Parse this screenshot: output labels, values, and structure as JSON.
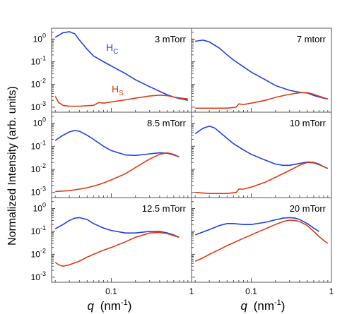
{
  "figure": {
    "ylabel": "Normalized Intensity (arb. units)",
    "xlabel_q": "q",
    "xlabel_unit": "(nm",
    "xlabel_exp": "-1",
    "xlabel_close": ")"
  },
  "colors": {
    "Hc": "#1f3fe8",
    "Hs": "#e03a12"
  },
  "chart_data": [
    {
      "type": "line",
      "panel": "3 mTorr",
      "label": "3 mTorr",
      "x_scale": "log",
      "y_scale": "log",
      "xlim": [
        0.018,
        1.0
      ],
      "ylim": [
        0.0006,
        3
      ],
      "yticks": [
        "10",
        "10",
        "10",
        "10"
      ],
      "ytick_exps": [
        "0",
        "-1",
        "-2",
        "-3"
      ],
      "annotations": [
        {
          "text": "H",
          "sub": "C",
          "series": "Hc"
        },
        {
          "text": "H",
          "sub": "S",
          "series": "Hs"
        }
      ],
      "series": [
        {
          "id": "Hc",
          "x": [
            0.02,
            0.025,
            0.03,
            0.035,
            0.04,
            0.05,
            0.06,
            0.08,
            0.1,
            0.15,
            0.2,
            0.3,
            0.4,
            0.5,
            0.6,
            0.7,
            0.8,
            0.9
          ],
          "y": [
            1.2,
            1.9,
            2.1,
            1.7,
            0.9,
            0.35,
            0.18,
            0.1,
            0.065,
            0.03,
            0.016,
            0.008,
            0.005,
            0.0035,
            0.0028,
            0.0024,
            0.0022,
            0.002
          ]
        },
        {
          "id": "Hs",
          "x": [
            0.02,
            0.022,
            0.025,
            0.03,
            0.04,
            0.06,
            0.07,
            0.08,
            0.1,
            0.15,
            0.2,
            0.3,
            0.4,
            0.5,
            0.6,
            0.8,
            0.9
          ],
          "y": [
            0.003,
            0.0016,
            0.0012,
            0.0011,
            0.0011,
            0.0012,
            0.0016,
            0.0015,
            0.0017,
            0.0021,
            0.0025,
            0.0031,
            0.0034,
            0.0032,
            0.0028,
            0.0024,
            0.0023
          ]
        }
      ]
    },
    {
      "type": "line",
      "panel": "7 mtorr",
      "label": "7 mtorr",
      "x_scale": "log",
      "y_scale": "log",
      "xlim": [
        0.018,
        1.0
      ],
      "ylim": [
        0.0006,
        3
      ],
      "series": [
        {
          "id": "Hc",
          "x": [
            0.02,
            0.025,
            0.03,
            0.04,
            0.05,
            0.06,
            0.08,
            0.1,
            0.15,
            0.2,
            0.3,
            0.4,
            0.5,
            0.6,
            0.7,
            0.8,
            0.9
          ],
          "y": [
            0.8,
            0.9,
            0.75,
            0.4,
            0.2,
            0.12,
            0.06,
            0.035,
            0.016,
            0.009,
            0.0055,
            0.0045,
            0.0042,
            0.0033,
            0.0028,
            0.0025,
            0.0023
          ]
        },
        {
          "id": "Hs",
          "x": [
            0.02,
            0.03,
            0.05,
            0.065,
            0.07,
            0.08,
            0.1,
            0.15,
            0.2,
            0.3,
            0.4,
            0.5,
            0.6,
            0.8,
            0.9
          ],
          "y": [
            0.0009,
            0.0009,
            0.0009,
            0.001,
            0.0014,
            0.0013,
            0.0015,
            0.002,
            0.0027,
            0.0037,
            0.0043,
            0.0044,
            0.0037,
            0.0026,
            0.0023
          ]
        }
      ]
    },
    {
      "type": "line",
      "panel": "8.5 mTorr",
      "label": "8.5 mTorr",
      "x_scale": "log",
      "y_scale": "log",
      "xlim": [
        0.018,
        1.0
      ],
      "ylim": [
        0.0006,
        3
      ],
      "yticks": [
        "10",
        "10",
        "10",
        "10"
      ],
      "ytick_exps": [
        "0",
        "-1",
        "-2",
        "-3"
      ],
      "series": [
        {
          "id": "Hc",
          "x": [
            0.02,
            0.025,
            0.03,
            0.035,
            0.04,
            0.05,
            0.06,
            0.08,
            0.1,
            0.15,
            0.2,
            0.3,
            0.4,
            0.5,
            0.6,
            0.7
          ],
          "y": [
            0.18,
            0.3,
            0.42,
            0.48,
            0.45,
            0.3,
            0.2,
            0.1,
            0.065,
            0.042,
            0.04,
            0.047,
            0.052,
            0.05,
            0.042,
            0.035
          ]
        },
        {
          "id": "Hs",
          "x": [
            0.02,
            0.03,
            0.04,
            0.05,
            0.06,
            0.07,
            0.08,
            0.1,
            0.15,
            0.2,
            0.3,
            0.4,
            0.5,
            0.6,
            0.7
          ],
          "y": [
            0.0011,
            0.0012,
            0.0014,
            0.0016,
            0.0019,
            0.0022,
            0.0026,
            0.0035,
            0.0065,
            0.012,
            0.028,
            0.045,
            0.052,
            0.045,
            0.035
          ]
        }
      ]
    },
    {
      "type": "line",
      "panel": "10 mTorr",
      "label": "10 mTorr",
      "x_scale": "log",
      "y_scale": "log",
      "xlim": [
        0.018,
        1.0
      ],
      "ylim": [
        0.0006,
        3
      ],
      "series": [
        {
          "id": "Hc",
          "x": [
            0.02,
            0.025,
            0.03,
            0.035,
            0.04,
            0.05,
            0.06,
            0.08,
            0.1,
            0.15,
            0.2,
            0.25,
            0.3,
            0.4,
            0.5,
            0.6,
            0.7,
            0.8,
            0.9
          ],
          "y": [
            0.35,
            0.6,
            0.75,
            0.62,
            0.42,
            0.22,
            0.13,
            0.07,
            0.045,
            0.025,
            0.017,
            0.015,
            0.015,
            0.018,
            0.021,
            0.02,
            0.017,
            0.013,
            0.011
          ]
        },
        {
          "id": "Hs",
          "x": [
            0.02,
            0.03,
            0.05,
            0.065,
            0.07,
            0.08,
            0.1,
            0.15,
            0.2,
            0.3,
            0.4,
            0.5,
            0.6,
            0.7,
            0.8,
            0.9
          ],
          "y": [
            0.001,
            0.0009,
            0.0009,
            0.001,
            0.0014,
            0.0014,
            0.0017,
            0.0028,
            0.0045,
            0.009,
            0.015,
            0.02,
            0.019,
            0.016,
            0.013,
            0.011
          ]
        }
      ]
    },
    {
      "type": "line",
      "panel": "12.5 mTorr",
      "label": "12.5 mTorr",
      "x_scale": "log",
      "y_scale": "log",
      "xlim": [
        0.018,
        1.0
      ],
      "ylim": [
        0.0006,
        3
      ],
      "yticks": [
        "10",
        "10",
        "10",
        "10"
      ],
      "ytick_exps": [
        "0",
        "-1",
        "-2",
        "-3"
      ],
      "series": [
        {
          "id": "Hc",
          "x": [
            0.02,
            0.025,
            0.03,
            0.035,
            0.04,
            0.05,
            0.06,
            0.08,
            0.1,
            0.15,
            0.2,
            0.3,
            0.4,
            0.5,
            0.6,
            0.7
          ],
          "y": [
            0.13,
            0.2,
            0.3,
            0.38,
            0.4,
            0.33,
            0.22,
            0.14,
            0.11,
            0.085,
            0.085,
            0.1,
            0.1,
            0.085,
            0.07,
            0.055
          ]
        },
        {
          "id": "Hs",
          "x": [
            0.02,
            0.022,
            0.025,
            0.03,
            0.04,
            0.05,
            0.06,
            0.08,
            0.1,
            0.15,
            0.2,
            0.3,
            0.4,
            0.5,
            0.6,
            0.7
          ],
          "y": [
            0.0045,
            0.0035,
            0.003,
            0.0035,
            0.005,
            0.0075,
            0.01,
            0.015,
            0.02,
            0.035,
            0.055,
            0.085,
            0.09,
            0.08,
            0.065,
            0.055
          ]
        }
      ]
    },
    {
      "type": "line",
      "panel": "20 mTorr",
      "label": "20 mTorr",
      "x_scale": "log",
      "y_scale": "log",
      "xlim": [
        0.018,
        1.0
      ],
      "ylim": [
        0.0006,
        3
      ],
      "series": [
        {
          "id": "Hc",
          "x": [
            0.02,
            0.03,
            0.04,
            0.05,
            0.06,
            0.08,
            0.1,
            0.15,
            0.2,
            0.25,
            0.3,
            0.35,
            0.4,
            0.5,
            0.6,
            0.7
          ],
          "y": [
            0.07,
            0.12,
            0.18,
            0.22,
            0.22,
            0.2,
            0.2,
            0.25,
            0.32,
            0.38,
            0.4,
            0.38,
            0.33,
            0.22,
            0.14,
            0.1
          ]
        },
        {
          "id": "Hs",
          "x": [
            0.02,
            0.025,
            0.03,
            0.04,
            0.05,
            0.06,
            0.08,
            0.1,
            0.15,
            0.2,
            0.25,
            0.3,
            0.35,
            0.4,
            0.5,
            0.6,
            0.7,
            0.8,
            0.9
          ],
          "y": [
            0.005,
            0.007,
            0.01,
            0.016,
            0.024,
            0.032,
            0.05,
            0.07,
            0.13,
            0.2,
            0.27,
            0.31,
            0.3,
            0.27,
            0.18,
            0.1,
            0.06,
            0.04,
            0.03
          ]
        }
      ]
    }
  ],
  "xticks": {
    "values": [
      0.1,
      1
    ],
    "labels": [
      "0.1",
      "1"
    ]
  }
}
